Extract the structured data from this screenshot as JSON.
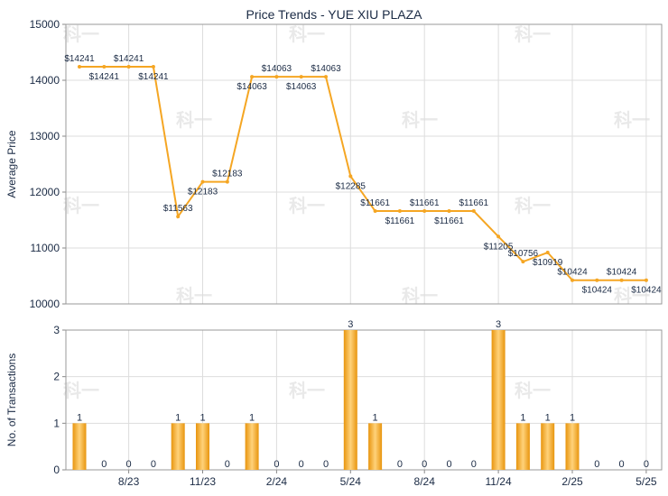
{
  "chart_data": [
    {
      "type": "line",
      "title": "Price Trends - YUE XIU PLAZA",
      "ylabel": "Average Price",
      "xlabel": "",
      "ylim": [
        10000,
        15000
      ],
      "yticks": [
        "10000",
        "11000",
        "12000",
        "13000",
        "14000",
        "15000"
      ],
      "grid": true,
      "color": "#f5a623",
      "x": [
        "2023-06",
        "2023-07",
        "2023-08",
        "2023-09",
        "2023-10",
        "2023-11",
        "2023-12",
        "2024-01",
        "2024-02",
        "2024-03",
        "2024-04",
        "2024-05",
        "2024-06",
        "2024-07",
        "2024-08",
        "2024-09",
        "2024-10",
        "2024-11",
        "2024-12",
        "2025-01",
        "2025-02",
        "2025-03",
        "2025-04",
        "2025-05"
      ],
      "values": [
        14241,
        14241,
        14241,
        14241,
        11563,
        12183,
        12183,
        14063,
        14063,
        14063,
        14063,
        12285,
        11661,
        11661,
        11661,
        11661,
        11661,
        11205,
        10756,
        10919,
        10424,
        10424,
        10424,
        10424
      ],
      "point_labels": [
        "$14241",
        "$14241",
        "$14241",
        "$14241",
        "$11563",
        "$12183",
        "$12183",
        "$14063",
        "$14063",
        "$14063",
        "$14063",
        "$12285",
        "$11661",
        "$11661",
        "$11661",
        "$11661",
        "$11661",
        "$11205",
        "$10756",
        "$10919",
        "$10424",
        "$10424",
        "$10424",
        "$10424"
      ]
    },
    {
      "type": "bar",
      "ylabel": "No. of Transactions",
      "xlabel": "",
      "ylim": [
        0,
        3
      ],
      "yticks": [
        "0",
        "1",
        "2",
        "3"
      ],
      "grid": true,
      "color": "#f5a623",
      "x": [
        "2023-06",
        "2023-07",
        "2023-08",
        "2023-09",
        "2023-10",
        "2023-11",
        "2023-12",
        "2024-01",
        "2024-02",
        "2024-03",
        "2024-04",
        "2024-05",
        "2024-06",
        "2024-07",
        "2024-08",
        "2024-09",
        "2024-10",
        "2024-11",
        "2024-12",
        "2025-01",
        "2025-02",
        "2025-03",
        "2025-04",
        "2025-05"
      ],
      "values": [
        1,
        0,
        0,
        0,
        1,
        1,
        0,
        1,
        0,
        0,
        0,
        3,
        1,
        0,
        0,
        0,
        0,
        3,
        1,
        1,
        1,
        0,
        0,
        0
      ],
      "xtick_labels": [
        "8/23",
        "11/23",
        "2/24",
        "5/24",
        "8/24",
        "11/24",
        "2/25",
        "5/25"
      ],
      "xtick_months": [
        "2023-08",
        "2023-11",
        "2024-02",
        "2024-05",
        "2024-08",
        "2024-11",
        "2025-02",
        "2025-05"
      ]
    }
  ],
  "watermark": "科一"
}
